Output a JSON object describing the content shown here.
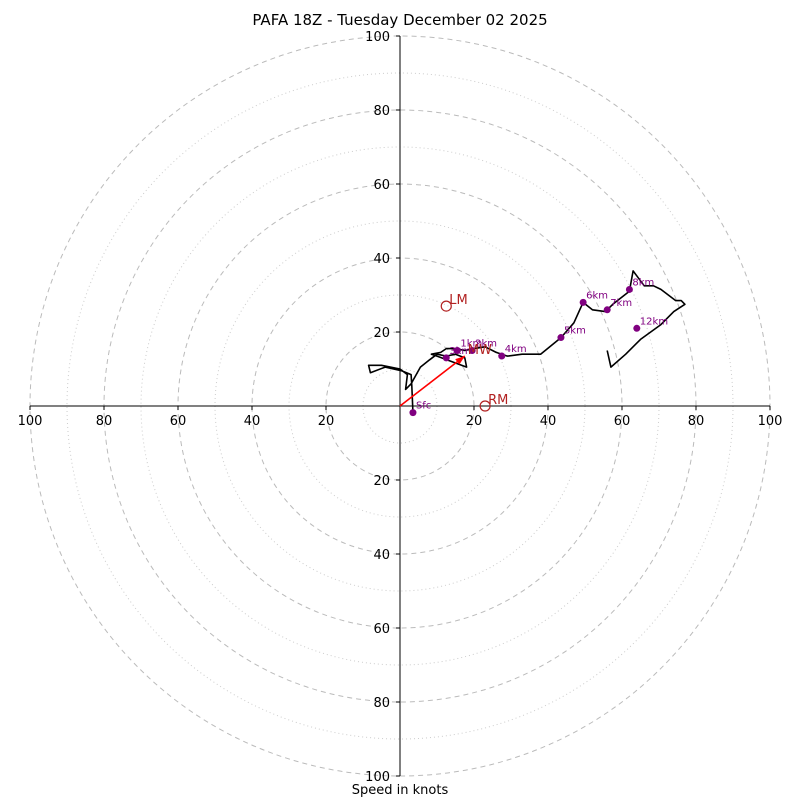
{
  "chart_data": {
    "type": "scatter",
    "subtype": "hodograph",
    "title": "PAFA 18Z - Tuesday December 02 2025",
    "xlabel": "Speed in knots",
    "ylabel": "",
    "xlim": [
      -100,
      100
    ],
    "ylim": [
      -100,
      100
    ],
    "major_rings": [
      20,
      40,
      60,
      80,
      100
    ],
    "minor_rings": [
      10,
      30,
      50,
      70,
      90
    ],
    "x_tick_labels": [
      "100",
      "80",
      "60",
      "40",
      "20",
      "20",
      "40",
      "60",
      "80",
      "100"
    ],
    "x_tick_values": [
      -100,
      -80,
      -60,
      -40,
      -20,
      20,
      40,
      60,
      80,
      100
    ],
    "y_tick_labels_top": [
      "20",
      "40",
      "60",
      "80",
      "100"
    ],
    "y_tick_labels_bottom": [
      "20",
      "40",
      "60",
      "80",
      "100"
    ],
    "hodograph_trace": [
      [
        3.5,
        -1.5
      ],
      [
        3.2,
        5.5
      ],
      [
        3,
        8.5
      ],
      [
        0.5,
        9.5
      ],
      [
        -4,
        10.5
      ],
      [
        -8,
        9
      ],
      [
        -8.5,
        11
      ],
      [
        -5,
        11
      ],
      [
        0,
        10
      ],
      [
        2,
        8.5
      ],
      [
        1.5,
        4.5
      ],
      [
        3,
        6
      ],
      [
        5.5,
        10.5
      ],
      [
        8,
        12.5
      ],
      [
        10,
        14
      ],
      [
        12.5,
        13.5
      ],
      [
        15,
        14
      ],
      [
        17.5,
        13
      ],
      [
        18,
        10.5
      ],
      [
        14,
        12
      ],
      [
        10,
        13.5
      ],
      [
        8.5,
        14
      ],
      [
        11,
        14.5
      ],
      [
        12.5,
        15.5
      ],
      [
        15,
        15.5
      ],
      [
        17.5,
        15
      ],
      [
        20,
        15.5
      ],
      [
        23,
        16
      ],
      [
        26,
        14.5
      ],
      [
        29,
        13.5
      ],
      [
        33,
        14
      ],
      [
        38,
        14
      ],
      [
        43.5,
        18.5
      ],
      [
        47,
        22.5
      ],
      [
        49.5,
        28
      ],
      [
        52,
        26
      ],
      [
        55.5,
        25.5
      ],
      [
        57.5,
        27.5
      ],
      [
        62,
        31
      ],
      [
        63,
        36.5
      ],
      [
        66,
        32.5
      ],
      [
        68.5,
        32.5
      ],
      [
        70.5,
        31.5
      ],
      [
        74.5,
        28.5
      ],
      [
        76,
        28.5
      ],
      [
        77,
        27.5
      ],
      [
        74,
        25.5
      ],
      [
        70.5,
        22
      ],
      [
        65,
        18
      ],
      [
        61,
        14
      ],
      [
        57,
        10.5
      ],
      [
        56,
        15
      ]
    ],
    "height_markers": [
      {
        "label": "Sfc",
        "u": 3.5,
        "v": -1.8
      },
      {
        "label": "1km",
        "u": 15.5,
        "v": 15
      },
      {
        "label": "2km",
        "u": 19.5,
        "v": 15
      },
      {
        "label": "3km",
        "u": 12.5,
        "v": 13
      },
      {
        "label": "4km",
        "u": 27.5,
        "v": 13.5
      },
      {
        "label": "5km",
        "u": 43.5,
        "v": 18.5
      },
      {
        "label": "6km",
        "u": 49.5,
        "v": 28
      },
      {
        "label": "7km",
        "u": 56,
        "v": 26
      },
      {
        "label": "8km",
        "u": 62,
        "v": 31.5
      },
      {
        "label": "12km",
        "u": 64,
        "v": 21
      }
    ],
    "storm_motion": [
      {
        "label": "LM",
        "u": 12.5,
        "v": 27
      },
      {
        "label": "RM",
        "u": 23,
        "v": 0
      },
      {
        "label": "MW",
        "u": 17.5,
        "v": 13.5
      }
    ],
    "mean_wind_vector": {
      "from": [
        0,
        0
      ],
      "to": [
        17.5,
        13.5
      ]
    },
    "colors": {
      "trace": "#000000",
      "height_marker": "#800080",
      "storm_motion": "#b22222",
      "vector": "#ff0000",
      "grid": "#bbbbbb"
    }
  }
}
